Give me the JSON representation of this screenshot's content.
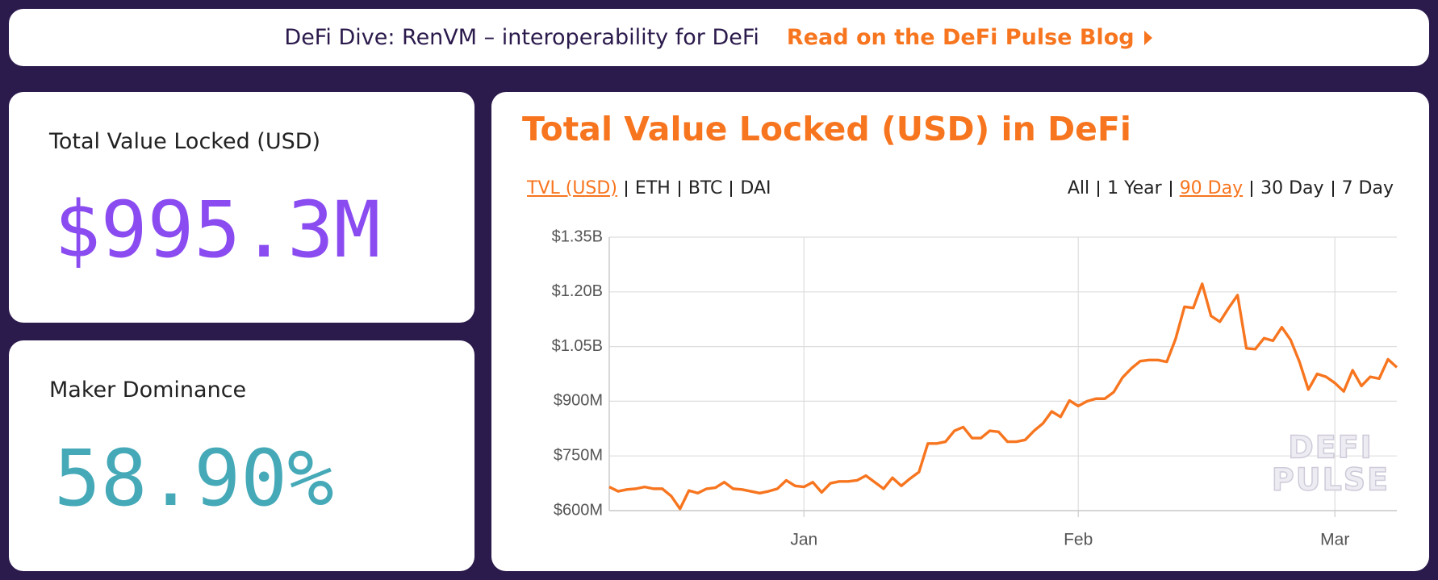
{
  "banner": {
    "text": "DeFi Dive: RenVM – interoperability for DeFi",
    "link": "Read on the DeFi Pulse Blog"
  },
  "cards": [
    {
      "label": "Total Value Locked (USD)",
      "value": "$995.3M",
      "color": "#8a4cf0"
    },
    {
      "label": "Maker Dominance",
      "value": "58.90%",
      "color": "#45a9b8"
    }
  ],
  "chart_tabs": {
    "currencies": [
      {
        "label": "TVL (USD)",
        "selected": true
      },
      {
        "label": "ETH",
        "selected": false
      },
      {
        "label": "BTC",
        "selected": false
      },
      {
        "label": "DAI",
        "selected": false
      }
    ],
    "ranges": [
      {
        "label": "All",
        "selected": false
      },
      {
        "label": "1 Year",
        "selected": false
      },
      {
        "label": "90 Day",
        "selected": true
      },
      {
        "label": "30 Day",
        "selected": false
      },
      {
        "label": "7 Day",
        "selected": false
      }
    ]
  },
  "chart_data": {
    "type": "line",
    "title": "Total Value Locked (USD) in DeFi",
    "watermark": [
      "DEFI",
      "PULSE"
    ],
    "color": "#f7751f",
    "grid": true,
    "categories": [
      null,
      null,
      null,
      null,
      null,
      null,
      null,
      null,
      null,
      null,
      null,
      null,
      null,
      null,
      null,
      null,
      null,
      null,
      null,
      null,
      null,
      null,
      "Jan",
      null,
      null,
      null,
      null,
      null,
      null,
      null,
      null,
      null,
      null,
      null,
      null,
      null,
      null,
      null,
      null,
      null,
      null,
      null,
      null,
      null,
      null,
      null,
      null,
      null,
      null,
      null,
      null,
      null,
      null,
      "Feb",
      null,
      null,
      null,
      null,
      null,
      null,
      null,
      null,
      null,
      null,
      null,
      null,
      null,
      null,
      null,
      null,
      null,
      null,
      null,
      null,
      null,
      null,
      null,
      null,
      null,
      null,
      null,
      null,
      "Mar",
      null,
      null,
      null,
      null,
      null,
      null,
      null
    ],
    "values": [
      665000000,
      653000000,
      658000000,
      660000000,
      665000000,
      660000000,
      660000000,
      640000000,
      605000000,
      655000000,
      648000000,
      660000000,
      663000000,
      678000000,
      660000000,
      658000000,
      653000000,
      648000000,
      653000000,
      660000000,
      683000000,
      668000000,
      665000000,
      678000000,
      650000000,
      675000000,
      680000000,
      680000000,
      683000000,
      696000000,
      678000000,
      660000000,
      690000000,
      668000000,
      688000000,
      706000000,
      784000000,
      784000000,
      789000000,
      819000000,
      829000000,
      799000000,
      799000000,
      819000000,
      816000000,
      789000000,
      789000000,
      794000000,
      819000000,
      839000000,
      872000000,
      857000000,
      902000000,
      887000000,
      900000000,
      907000000,
      907000000,
      925000000,
      965000000,
      990000000,
      1010000000,
      1013000000,
      1013000000,
      1008000000,
      1071000000,
      1159000000,
      1156000000,
      1222000000,
      1134000000,
      1118000000,
      1156000000,
      1191000000,
      1045000000,
      1043000000,
      1073000000,
      1066000000,
      1103000000,
      1068000000,
      1008000000,
      932000000,
      975000000,
      967000000,
      950000000,
      927000000,
      985000000,
      942000000,
      967000000,
      962000000,
      1015000000,
      993000000
    ],
    "ylim": [
      600000000,
      1350000000
    ],
    "yticks": [
      {
        "value": 600000000,
        "label": "$600M"
      },
      {
        "value": 750000000,
        "label": "$750M"
      },
      {
        "value": 900000000,
        "label": "$900M"
      },
      {
        "value": 1050000000,
        "label": "$1.05B"
      },
      {
        "value": 1200000000,
        "label": "$1.20B"
      },
      {
        "value": 1350000000,
        "label": "$1.35B"
      }
    ]
  }
}
